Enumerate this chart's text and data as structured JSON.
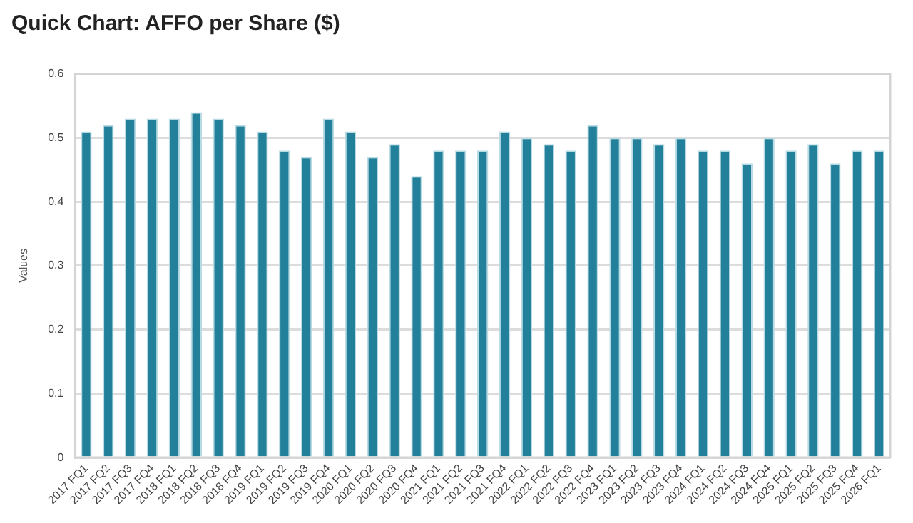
{
  "chart_data": {
    "type": "bar",
    "title": "Quick Chart: AFFO per Share ($)",
    "ylabel": "Values",
    "categories": [
      "2017 FQ1",
      "2017 FQ2",
      "2017 FQ3",
      "2017 FQ4",
      "2018 FQ1",
      "2018 FQ2",
      "2018 FQ3",
      "2018 FQ4",
      "2019 FQ1",
      "2019 FQ2",
      "2019 FQ3",
      "2019 FQ4",
      "2020 FQ1",
      "2020 FQ2",
      "2020 FQ3",
      "2020 FQ4",
      "2021 FQ1",
      "2021 FQ2",
      "2021 FQ3",
      "2021 FQ4",
      "2022 FQ1",
      "2022 FQ2",
      "2022 FQ3",
      "2022 FQ4",
      "2023 FQ1",
      "2023 FQ2",
      "2023 FQ3",
      "2023 FQ4",
      "2024 FQ1",
      "2024 FQ2",
      "2024 FQ3",
      "2024 FQ4",
      "2025 FQ1",
      "2025 FQ2",
      "2025 FQ3",
      "2025 FQ4",
      "2026 FQ1"
    ],
    "values": [
      0.51,
      0.52,
      0.53,
      0.53,
      0.53,
      0.54,
      0.53,
      0.52,
      0.51,
      0.48,
      0.47,
      0.53,
      0.51,
      0.47,
      0.49,
      0.44,
      0.48,
      0.48,
      0.48,
      0.51,
      0.5,
      0.49,
      0.48,
      0.52,
      0.5,
      0.5,
      0.49,
      0.5,
      0.48,
      0.48,
      0.46,
      0.5,
      0.48,
      0.49,
      0.46,
      0.48,
      0.48
    ],
    "color": "#23809a",
    "ylim": [
      0,
      0.6
    ],
    "yticks": [
      0,
      0.1,
      0.2,
      0.3,
      0.4,
      0.5,
      0.6
    ],
    "grid": "y",
    "legend": false
  }
}
